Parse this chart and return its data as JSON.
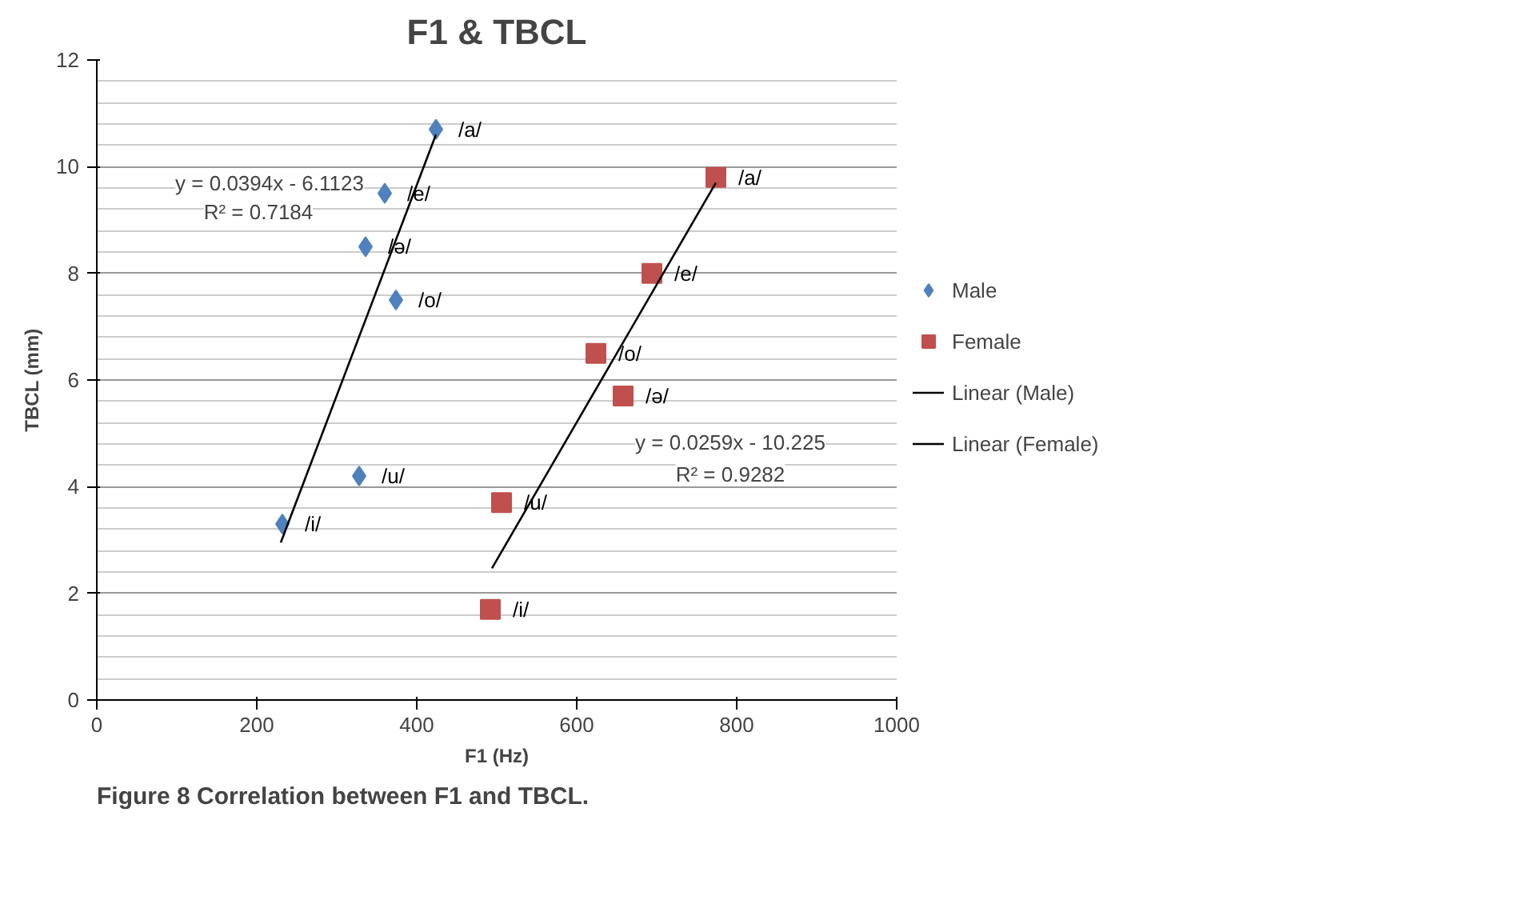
{
  "chart_data": {
    "type": "scatter",
    "title": "F1 & TBCL",
    "xlabel": "F1 (Hz)",
    "ylabel": "TBCL (mm)",
    "xlim": [
      0,
      1000
    ],
    "xticks": [
      0,
      200,
      400,
      600,
      800,
      1000
    ],
    "ylim": [
      0,
      12
    ],
    "yticks": [
      0,
      2,
      4,
      6,
      8,
      10,
      12
    ],
    "grid": "y",
    "legend": "right",
    "series": [
      {
        "name": "Male",
        "marker": "diamond",
        "color": "#4f81bd",
        "x": [
          424,
          360,
          336,
          374,
          328,
          232
        ],
        "values": [
          10.7,
          9.5,
          8.5,
          7.5,
          4.2,
          3.3
        ]
      },
      {
        "name": "Female",
        "marker": "square",
        "color": "#c0504d",
        "x": [
          774,
          694,
          624,
          658,
          506,
          492
        ],
        "values": [
          9.8,
          8.0,
          6.5,
          5.7,
          3.7,
          1.7
        ]
      },
      {
        "name": "Linear (Male)",
        "type": "line",
        "color": "#000000",
        "x": [
          230,
          424
        ],
        "values": [
          2.95,
          10.6
        ]
      },
      {
        "name": "Linear (Female)",
        "type": "line",
        "color": "#000000",
        "x": [
          494,
          774
        ],
        "values": [
          2.47,
          9.7
        ]
      }
    ],
    "annotations": [
      {
        "text": "/a/",
        "x": 424,
        "y": 10.7
      },
      {
        "text": "/e/",
        "x": 360,
        "y": 9.5
      },
      {
        "text": "/ə/",
        "x": 336,
        "y": 8.5
      },
      {
        "text": "/o/",
        "x": 374,
        "y": 7.5
      },
      {
        "text": "/u/",
        "x": 328,
        "y": 4.2
      },
      {
        "text": "/i/",
        "x": 232,
        "y": 3.3
      },
      {
        "text": "/a/",
        "x": 774,
        "y": 9.8
      },
      {
        "text": "/e/",
        "x": 694,
        "y": 8.0
      },
      {
        "text": "/o/",
        "x": 624,
        "y": 6.5
      },
      {
        "text": "/ə/",
        "x": 658,
        "y": 5.7
      },
      {
        "text": "/u/",
        "x": 506,
        "y": 3.7
      },
      {
        "text": "/i/",
        "x": 492,
        "y": 1.7
      },
      "y = 0.0394x - 6.1123",
      "R² = 0.7184",
      "y = 0.0259x - 10.225",
      "R² = 0.9282",
      "Figure 8 Correlation between F1 and TBCL."
    ]
  }
}
